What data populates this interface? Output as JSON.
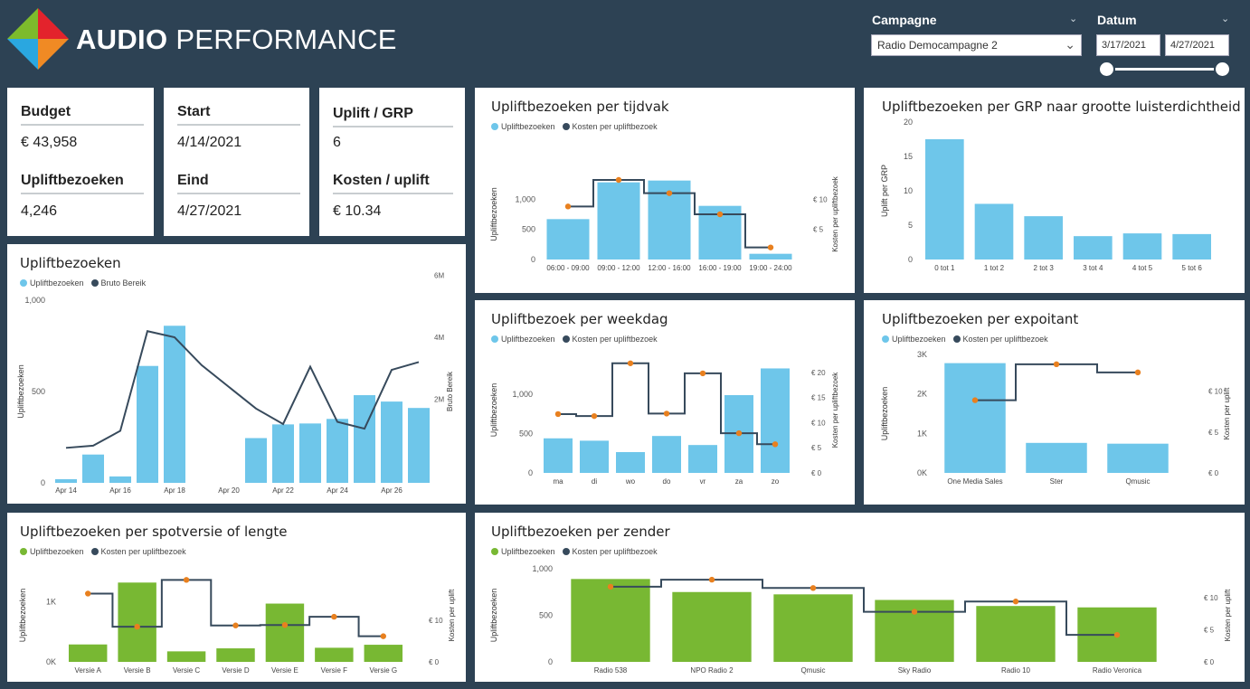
{
  "header": {
    "brand_bold": "AUDIO",
    "brand_light": "PERFORMANCE"
  },
  "filters": {
    "campaign_title": "Campagne",
    "campaign_value": "Radio Democampagne 2",
    "date_title": "Datum",
    "date_start": "3/17/2021",
    "date_end": "4/27/2021"
  },
  "kpi": {
    "budget_label": "Budget",
    "budget_value": "€ 43,958",
    "uplift_label": "Upliftbezoeken",
    "uplift_value": "4,246",
    "start_label": "Start",
    "start_value": "4/14/2021",
    "end_label": "Eind",
    "end_value": "4/27/2021",
    "grp_label": "Uplift / GRP",
    "grp_value": "6",
    "cost_label": "Kosten / uplift",
    "cost_value": "€ 10.34"
  },
  "colors": {
    "blue": "#6ec6ea",
    "green": "#78b833",
    "line": "#374a5c",
    "marker": "#e8801f"
  },
  "charts": {
    "tijdvak": {
      "title": "Upliftbezoeken per tijdvak",
      "legend": [
        "Upliftbezoeken",
        "Kosten per upliftbezoek"
      ],
      "ylabel": "Upliftbezoeken",
      "y2label": "Kosten per upliftbezoek",
      "yticks": [
        "0",
        "500",
        "1,000"
      ],
      "y2ticks": [
        "€ 5",
        "€ 10"
      ],
      "chart_data": {
        "type": "bar",
        "categories": [
          "06:00 - 09:00",
          "09:00 - 12:00",
          "12:00 - 16:00",
          "16:00 - 19:00",
          "19:00 - 24:00"
        ],
        "values": [
          670,
          1280,
          1310,
          890,
          95
        ],
        "line": [
          8.8,
          13.2,
          11.0,
          7.5,
          2.0
        ],
        "ylim": [
          0,
          1500
        ],
        "y2lim": [
          0,
          15
        ]
      }
    },
    "grp": {
      "title": "Upliftbezoeken per GRP naar grootte luisterdichtheid",
      "ylabel": "Uplift per GRP",
      "yticks": [
        "0",
        "5",
        "10",
        "15",
        "20"
      ],
      "chart_data": {
        "type": "bar",
        "categories": [
          "0 tot 1",
          "1 tot 2",
          "2 tot 3",
          "3 tot 4",
          "4 tot 5",
          "5 tot 6"
        ],
        "values": [
          17.5,
          8.1,
          6.3,
          3.4,
          3.8,
          3.7
        ],
        "ylim": [
          0,
          20
        ]
      }
    },
    "daily": {
      "title": "Upliftbezoeken",
      "legend": [
        "Upliftbezoeken",
        "Bruto Bereik"
      ],
      "ylabel": "Upliftbezoeken",
      "y2label": "Bruto Bereik",
      "yticks": [
        "0",
        "500",
        "1,000"
      ],
      "y2ticks": [
        "2M",
        "4M",
        "6M"
      ],
      "xticks": [
        "Apr 14",
        "Apr 16",
        "Apr 18",
        "Apr 20",
        "Apr 22",
        "Apr 24",
        "Apr 26"
      ],
      "chart_data": {
        "type": "bar",
        "categories": [
          "Apr 14",
          "Apr 15",
          "Apr 16",
          "Apr 17",
          "Apr 18",
          "Apr 19",
          "Apr 20",
          "Apr 21",
          "Apr 22",
          "Apr 23",
          "Apr 24",
          "Apr 25",
          "Apr 26",
          "Apr 27"
        ],
        "values": [
          20,
          155,
          35,
          640,
          860,
          0,
          0,
          245,
          320,
          325,
          350,
          480,
          445,
          410
        ],
        "line": [
          0.43,
          0.5,
          0.98,
          4.2,
          4.0,
          3.1,
          2.4,
          1.7,
          1.2,
          3.05,
          1.27,
          1.05,
          2.95,
          3.2
        ],
        "ylim": [
          0,
          1000
        ],
        "y2lim": [
          -0.7,
          5.2
        ]
      }
    },
    "weekdag": {
      "title": "Upliftbezoek per weekdag",
      "legend": [
        "Upliftbezoeken",
        "Kosten per upliftbezoek"
      ],
      "ylabel": "Upliftbezoeken",
      "y2label": "Kosten per upliftbezoek",
      "yticks": [
        "0",
        "500",
        "1,000"
      ],
      "y2ticks": [
        "€ 0",
        "€ 5",
        "€ 10",
        "€ 15",
        "€ 20"
      ],
      "chart_data": {
        "type": "bar",
        "categories": [
          "ma",
          "di",
          "wo",
          "do",
          "vr",
          "za",
          "zo"
        ],
        "values": [
          440,
          410,
          265,
          470,
          355,
          990,
          1330
        ],
        "line": [
          11.7,
          11.3,
          21.8,
          11.8,
          19.8,
          7.9,
          5.7
        ],
        "ylim": [
          0,
          1600
        ],
        "y2lim": [
          0,
          25
        ]
      }
    },
    "expoitant": {
      "title": "Upliftbezoeken per expoitant",
      "legend": [
        "Upliftbezoeken",
        "Kosten per upliftbezoek"
      ],
      "ylabel": "Upliftbezoeken",
      "y2label": "Kosten per uplift",
      "yticks": [
        "0K",
        "1K",
        "2K",
        "3K"
      ],
      "y2ticks": [
        "€ 0",
        "€ 5",
        "€ 10"
      ],
      "chart_data": {
        "type": "bar",
        "categories": [
          "One Media Sales",
          "Ster",
          "Qmusic"
        ],
        "values": [
          2780,
          760,
          740
        ],
        "line": [
          8.9,
          13.3,
          12.3
        ],
        "ylim": [
          0,
          3000
        ],
        "y2lim": [
          0,
          14.5
        ]
      }
    },
    "spotversie": {
      "title": "Upliftbezoeken per spotversie of lengte",
      "legend": [
        "Upliftbezoeken",
        "Kosten per upliftbezoek"
      ],
      "ylabel": "Upliftbezoeken",
      "y2label": "Kosten per uplift",
      "yticks": [
        "0K",
        "1K"
      ],
      "y2ticks": [
        "€ 0",
        "€ 10"
      ],
      "chart_data": {
        "type": "bar",
        "categories": [
          "Versie A",
          "Versie B",
          "Versie C",
          "Versie D",
          "Versie E",
          "Versie F",
          "Versie G"
        ],
        "values": [
          290,
          1320,
          175,
          225,
          970,
          235,
          285
        ],
        "line": [
          16.5,
          8.5,
          19.8,
          8.8,
          8.9,
          10.9,
          6.2
        ],
        "ylim": [
          0,
          1550
        ],
        "y2lim": [
          0,
          22.5
        ]
      }
    },
    "zender": {
      "title": "Upliftbezoeken per zender",
      "legend": [
        "Upliftbezoeken",
        "Kosten per upliftbezoek"
      ],
      "ylabel": "Upliftbezoeken",
      "y2label": "Kosten per uplift",
      "yticks": [
        "0",
        "500",
        "1,000"
      ],
      "y2ticks": [
        "€ 0",
        "€ 5",
        "€ 10"
      ],
      "chart_data": {
        "type": "bar",
        "categories": [
          "Radio 538",
          "NPO Radio 2",
          "Qmusic",
          "Sky Radio",
          "Radio 10",
          "Radio Veronica"
        ],
        "values": [
          890,
          750,
          725,
          665,
          600,
          585
        ],
        "line": [
          11.7,
          12.8,
          11.5,
          7.8,
          9.4,
          4.2
        ],
        "ylim": [
          0,
          1000
        ],
        "y2lim": [
          0,
          14.5
        ]
      }
    }
  }
}
